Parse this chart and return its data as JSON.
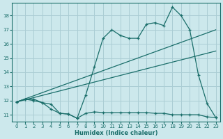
{
  "bg_color": "#cce8ec",
  "grid_color": "#aacdd4",
  "line_color": "#1a6e6a",
  "xlabel": "Humidex (Indice chaleur)",
  "xlim": [
    -0.5,
    23.5
  ],
  "ylim": [
    10.5,
    18.9
  ],
  "yticks": [
    11,
    12,
    13,
    14,
    15,
    16,
    17,
    18
  ],
  "xticks": [
    0,
    1,
    2,
    3,
    4,
    5,
    6,
    7,
    8,
    9,
    10,
    11,
    12,
    13,
    14,
    15,
    16,
    17,
    18,
    19,
    20,
    21,
    22,
    23
  ],
  "top_line_x": [
    0,
    1,
    2,
    3,
    4,
    5,
    6,
    7,
    8,
    9,
    10,
    11,
    12,
    13,
    14,
    15,
    16,
    17,
    18,
    19,
    20,
    21,
    22,
    23
  ],
  "top_line_y": [
    11.9,
    12.1,
    12.1,
    11.85,
    11.75,
    11.1,
    11.05,
    10.75,
    12.4,
    14.4,
    16.4,
    17.0,
    16.6,
    16.4,
    16.4,
    17.4,
    17.5,
    17.3,
    18.6,
    18.0,
    17.0,
    13.8,
    11.8,
    10.8
  ],
  "bot_line_x": [
    0,
    1,
    2,
    3,
    4,
    5,
    6,
    7,
    8,
    9,
    10,
    11,
    12,
    13,
    14,
    15,
    16,
    17,
    18,
    19,
    20,
    21,
    22,
    23
  ],
  "bot_line_y": [
    11.9,
    12.1,
    12.0,
    11.85,
    11.4,
    11.1,
    11.05,
    10.75,
    11.1,
    11.2,
    11.15,
    11.15,
    11.15,
    11.15,
    11.15,
    11.15,
    11.1,
    11.1,
    11.0,
    11.0,
    11.0,
    11.0,
    10.85,
    10.8
  ],
  "trend1_x": [
    0,
    23
  ],
  "trend1_y": [
    11.9,
    17.0
  ],
  "trend2_x": [
    0,
    23
  ],
  "trend2_y": [
    11.9,
    15.5
  ]
}
